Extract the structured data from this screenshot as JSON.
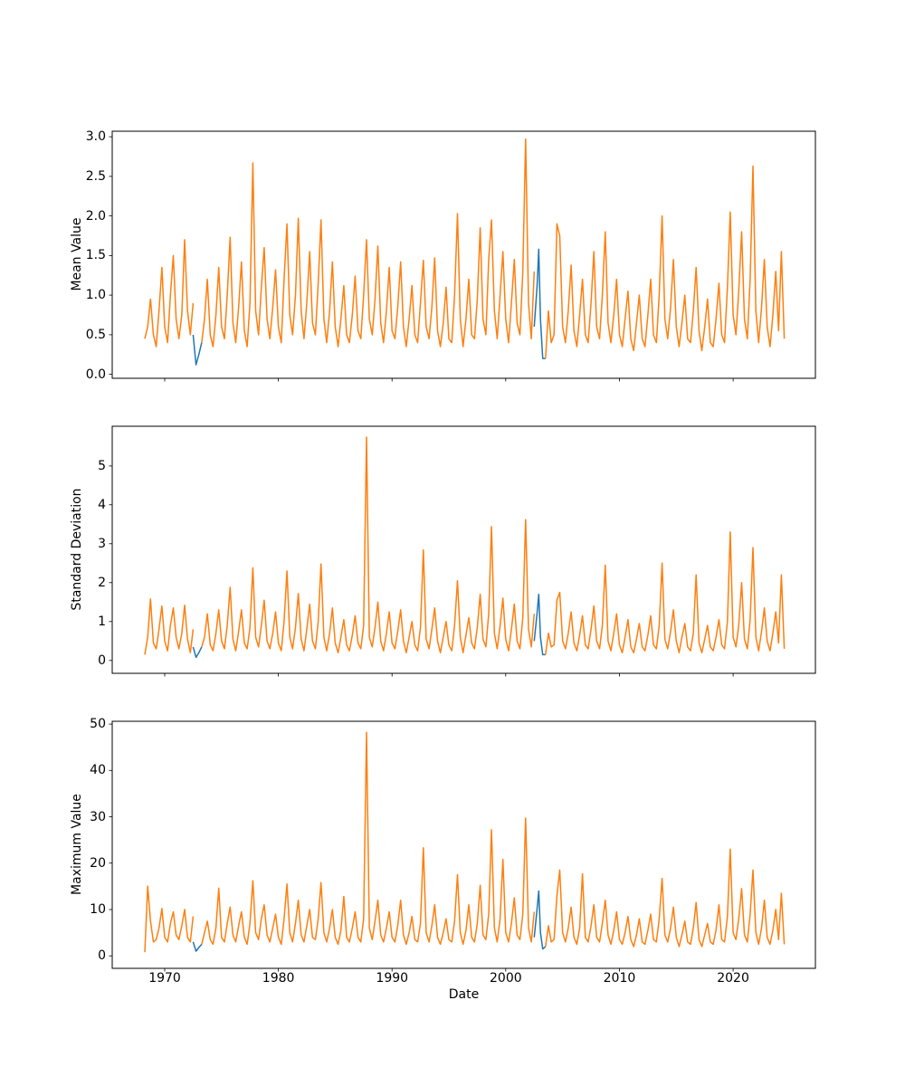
{
  "x_axis": {
    "label": "Date",
    "ticks": [
      1970,
      1980,
      1990,
      2000,
      2010,
      2020
    ],
    "tick_labels": [
      "1970",
      "1980",
      "1990",
      "2000",
      "2010",
      "2020"
    ],
    "xlim": [
      1965.38,
      2027.24
    ]
  },
  "colors": {
    "series_blue": "#1f77b4",
    "series_orange": "#ff7f0e",
    "axis": "#000000"
  },
  "chart_data": [
    {
      "type": "line",
      "ylabel": "Mean Value",
      "ylim": [
        -0.05,
        3.07
      ],
      "yticks": [
        0.0,
        0.5,
        1.0,
        1.5,
        2.0,
        2.5,
        3.0
      ],
      "ytick_labels": [
        "0.0",
        "0.5",
        "1.0",
        "1.5",
        "2.0",
        "2.5",
        "3.0"
      ],
      "series": [
        {
          "name": "original-blue",
          "color": "#1f77b4",
          "segments": [
            {
              "x": [
                1972.5,
                1972.75,
                1973.0,
                1973.25
              ],
              "y": [
                0.5,
                0.12,
                0.25,
                0.4
              ]
            },
            {
              "x": [
                2002.5,
                2002.75,
                2002.9,
                2003.05,
                2003.25,
                2003.5
              ],
              "y": [
                0.6,
                1.1,
                1.58,
                0.7,
                0.2,
                0.2
              ]
            }
          ]
        },
        {
          "name": "overlay-orange",
          "color": "#ff7f0e",
          "x_start": 1968.25,
          "x_step": 0.25,
          "values": [
            0.45,
            0.6,
            0.95,
            0.5,
            0.35,
            0.8,
            1.35,
            0.6,
            0.4,
            1.0,
            1.5,
            0.7,
            0.45,
            0.75,
            1.7,
            0.8,
            0.5,
            0.9,
            null,
            null,
            0.4,
            0.7,
            1.2,
            0.5,
            0.35,
            0.75,
            1.35,
            0.6,
            0.45,
            1.0,
            1.73,
            0.65,
            0.4,
            0.85,
            1.42,
            0.55,
            0.35,
            0.9,
            2.67,
            0.8,
            0.5,
            1.1,
            1.6,
            0.7,
            0.45,
            0.85,
            1.32,
            0.6,
            0.4,
            1.2,
            1.9,
            0.75,
            0.5,
            1.0,
            1.97,
            0.8,
            0.45,
            0.9,
            1.55,
            0.65,
            0.5,
            1.15,
            1.95,
            0.7,
            0.4,
            0.8,
            1.42,
            0.6,
            0.35,
            0.7,
            1.12,
            0.5,
            0.4,
            0.75,
            1.24,
            0.55,
            0.45,
            1.0,
            1.7,
            0.7,
            0.5,
            0.95,
            1.62,
            0.65,
            0.4,
            0.8,
            1.35,
            0.55,
            0.45,
            0.85,
            1.42,
            0.6,
            0.35,
            0.7,
            1.12,
            0.5,
            0.4,
            0.9,
            1.44,
            0.6,
            0.45,
            0.85,
            1.47,
            0.55,
            0.35,
            0.65,
            1.1,
            0.45,
            0.4,
            1.0,
            2.03,
            0.7,
            0.35,
            0.7,
            1.2,
            0.5,
            0.45,
            0.95,
            1.85,
            0.7,
            0.5,
            1.45,
            1.95,
            0.8,
            0.45,
            1.0,
            1.55,
            0.7,
            0.4,
            0.9,
            1.45,
            0.65,
            0.5,
            1.3,
            2.97,
            0.9,
            0.45,
            1.3,
            null,
            null,
            null,
            0.2,
            0.8,
            0.4,
            0.5,
            1.9,
            1.75,
            0.6,
            0.4,
            0.8,
            1.38,
            0.55,
            0.35,
            0.75,
            1.2,
            0.5,
            0.4,
            0.9,
            1.55,
            0.6,
            0.45,
            1.0,
            1.8,
            0.65,
            0.4,
            0.75,
            1.2,
            0.5,
            0.35,
            0.7,
            1.05,
            0.45,
            0.3,
            0.65,
            1.0,
            0.45,
            0.35,
            0.75,
            1.2,
            0.5,
            0.4,
            1.0,
            2.0,
            0.7,
            0.45,
            0.85,
            1.45,
            0.6,
            0.35,
            0.65,
            1.0,
            0.45,
            0.4,
            0.8,
            1.35,
            0.55,
            0.3,
            0.6,
            0.95,
            0.4,
            0.35,
            0.7,
            1.15,
            0.5,
            0.4,
            1.1,
            2.05,
            0.75,
            0.5,
            1.05,
            1.8,
            0.7,
            0.45,
            1.2,
            2.63,
            0.8,
            0.4,
            0.85,
            1.45,
            0.6,
            0.35,
            0.75,
            1.3,
            0.55,
            1.55,
            0.45
          ]
        }
      ]
    },
    {
      "type": "line",
      "ylabel": "Standard Deviation",
      "ylim": [
        -0.33,
        6.02
      ],
      "yticks": [
        0,
        1,
        2,
        3,
        4,
        5
      ],
      "ytick_labels": [
        "0",
        "1",
        "2",
        "3",
        "4",
        "5"
      ],
      "series": [
        {
          "name": "original-blue",
          "color": "#1f77b4",
          "segments": [
            {
              "x": [
                1972.5,
                1972.75,
                1973.0,
                1973.25
              ],
              "y": [
                0.35,
                0.08,
                0.2,
                0.35
              ]
            },
            {
              "x": [
                2002.5,
                2002.75,
                2002.9,
                2003.05,
                2003.25,
                2003.5
              ],
              "y": [
                0.5,
                1.2,
                1.7,
                0.6,
                0.15,
                0.15
              ]
            }
          ]
        },
        {
          "name": "overlay-orange",
          "color": "#ff7f0e",
          "x_start": 1968.25,
          "x_step": 0.25,
          "values": [
            0.15,
            0.6,
            1.58,
            0.45,
            0.3,
            0.8,
            1.4,
            0.5,
            0.25,
            0.9,
            1.35,
            0.6,
            0.3,
            0.7,
            1.42,
            0.55,
            0.2,
            0.8,
            null,
            null,
            0.35,
            0.6,
            1.2,
            0.4,
            0.25,
            0.7,
            1.3,
            0.5,
            0.3,
            0.9,
            1.88,
            0.55,
            0.25,
            0.75,
            1.3,
            0.45,
            0.3,
            0.85,
            2.38,
            0.6,
            0.35,
            0.9,
            1.55,
            0.5,
            0.3,
            0.7,
            1.25,
            0.45,
            0.25,
            1.0,
            2.3,
            0.6,
            0.3,
            0.85,
            1.72,
            0.55,
            0.25,
            0.8,
            1.45,
            0.5,
            0.3,
            1.0,
            2.48,
            0.6,
            0.25,
            0.7,
            1.35,
            0.45,
            0.2,
            0.6,
            1.05,
            0.4,
            0.25,
            0.65,
            1.15,
            0.45,
            0.3,
            0.9,
            5.74,
            0.6,
            0.35,
            0.85,
            1.5,
            0.5,
            0.25,
            0.7,
            1.25,
            0.45,
            0.3,
            0.75,
            1.3,
            0.5,
            0.2,
            0.6,
            1.0,
            0.4,
            0.25,
            0.85,
            2.84,
            0.55,
            0.3,
            0.8,
            1.35,
            0.5,
            0.2,
            0.6,
            1.0,
            0.4,
            0.25,
            0.9,
            2.05,
            0.6,
            0.2,
            0.65,
            1.1,
            0.45,
            0.3,
            0.85,
            1.7,
            0.55,
            0.35,
            1.2,
            3.44,
            0.7,
            0.3,
            0.9,
            1.6,
            0.55,
            0.25,
            0.8,
            1.45,
            0.5,
            0.3,
            1.1,
            3.62,
            0.8,
            0.35,
            1.2,
            null,
            null,
            null,
            0.15,
            0.7,
            0.35,
            0.4,
            1.55,
            1.75,
            0.5,
            0.3,
            0.7,
            1.25,
            0.45,
            0.25,
            0.65,
            1.15,
            0.4,
            0.3,
            0.8,
            1.4,
            0.5,
            0.3,
            0.9,
            2.45,
            0.5,
            0.25,
            0.7,
            1.2,
            0.4,
            0.2,
            0.6,
            1.05,
            0.35,
            0.2,
            0.55,
            0.95,
            0.35,
            0.25,
            0.65,
            1.15,
            0.4,
            0.3,
            0.9,
            2.5,
            0.55,
            0.3,
            0.75,
            1.3,
            0.5,
            0.2,
            0.6,
            0.95,
            0.35,
            0.25,
            0.7,
            2.2,
            0.45,
            0.2,
            0.55,
            0.9,
            0.35,
            0.25,
            0.6,
            1.05,
            0.4,
            0.3,
            1.0,
            3.3,
            0.6,
            0.35,
            0.9,
            2.0,
            0.55,
            0.3,
            1.05,
            2.9,
            0.6,
            0.25,
            0.75,
            1.35,
            0.5,
            0.25,
            0.7,
            1.25,
            0.45,
            2.2,
            0.3
          ]
        }
      ]
    },
    {
      "type": "line",
      "ylabel": "Maximum Value",
      "ylim": [
        -2.7,
        50.6
      ],
      "yticks": [
        0,
        10,
        20,
        30,
        40,
        50
      ],
      "ytick_labels": [
        "0",
        "10",
        "20",
        "30",
        "40",
        "50"
      ],
      "series": [
        {
          "name": "original-blue",
          "color": "#1f77b4",
          "segments": [
            {
              "x": [
                1972.5,
                1972.75,
                1973.0,
                1973.25
              ],
              "y": [
                3.0,
                1.0,
                1.8,
                2.5
              ]
            },
            {
              "x": [
                2002.5,
                2002.75,
                2002.9,
                2003.05,
                2003.25,
                2003.5
              ],
              "y": [
                4.0,
                10.0,
                14.0,
                5.0,
                1.5,
                2.0
              ]
            }
          ]
        },
        {
          "name": "overlay-orange",
          "color": "#ff7f0e",
          "x_start": 1968.25,
          "x_step": 0.25,
          "values": [
            0.8,
            15.0,
            7.5,
            3.0,
            3.5,
            6.0,
            10.2,
            4.0,
            3.0,
            7.0,
            9.5,
            4.5,
            3.5,
            6.5,
            10.0,
            4.0,
            3.0,
            8.5,
            null,
            null,
            2.5,
            5.0,
            7.5,
            3.5,
            2.5,
            6.0,
            14.6,
            4.0,
            3.0,
            7.0,
            10.5,
            4.5,
            3.0,
            6.5,
            9.5,
            4.0,
            2.5,
            7.0,
            16.2,
            5.0,
            3.5,
            8.0,
            11.0,
            4.5,
            3.0,
            6.0,
            9.0,
            4.0,
            2.5,
            8.0,
            15.5,
            5.0,
            3.0,
            7.0,
            12.0,
            4.5,
            3.0,
            6.5,
            10.0,
            4.0,
            3.5,
            8.0,
            15.8,
            5.0,
            3.0,
            6.0,
            10.0,
            4.0,
            2.5,
            5.5,
            12.8,
            4.0,
            3.0,
            6.0,
            9.5,
            4.0,
            3.0,
            8.0,
            48.2,
            6.0,
            3.5,
            7.5,
            12.0,
            4.5,
            3.0,
            6.0,
            9.5,
            4.0,
            3.0,
            6.5,
            12.0,
            4.5,
            2.5,
            5.0,
            8.5,
            3.5,
            3.0,
            7.0,
            23.3,
            5.0,
            3.0,
            6.5,
            11.0,
            4.0,
            2.5,
            5.0,
            8.0,
            3.5,
            3.0,
            7.5,
            17.5,
            5.0,
            2.5,
            5.5,
            11.0,
            4.0,
            3.0,
            7.0,
            15.2,
            4.5,
            3.5,
            9.0,
            27.2,
            6.0,
            3.0,
            8.0,
            20.8,
            5.0,
            3.0,
            7.0,
            12.5,
            4.5,
            3.5,
            9.0,
            29.7,
            6.0,
            3.0,
            9.5,
            null,
            null,
            null,
            2.0,
            6.5,
            3.0,
            3.5,
            13.0,
            18.5,
            5.0,
            3.0,
            6.0,
            10.5,
            4.0,
            2.5,
            6.0,
            17.7,
            4.0,
            3.0,
            6.5,
            11.0,
            4.0,
            3.0,
            7.0,
            12.0,
            4.5,
            2.5,
            5.5,
            9.5,
            3.5,
            2.5,
            5.0,
            8.5,
            3.5,
            2.0,
            4.5,
            8.0,
            3.0,
            2.5,
            5.5,
            9.0,
            3.5,
            3.0,
            8.0,
            16.7,
            4.5,
            3.0,
            6.0,
            10.5,
            4.0,
            2.0,
            4.5,
            7.5,
            3.0,
            2.5,
            6.0,
            11.5,
            3.5,
            2.0,
            4.5,
            7.0,
            3.0,
            2.5,
            5.5,
            11.0,
            3.5,
            3.0,
            8.5,
            23.0,
            5.0,
            3.5,
            8.0,
            14.5,
            4.5,
            3.0,
            9.0,
            18.5,
            5.0,
            2.5,
            6.0,
            12.0,
            4.0,
            2.5,
            5.5,
            10.0,
            3.5,
            13.5,
            2.5
          ]
        }
      ]
    }
  ]
}
